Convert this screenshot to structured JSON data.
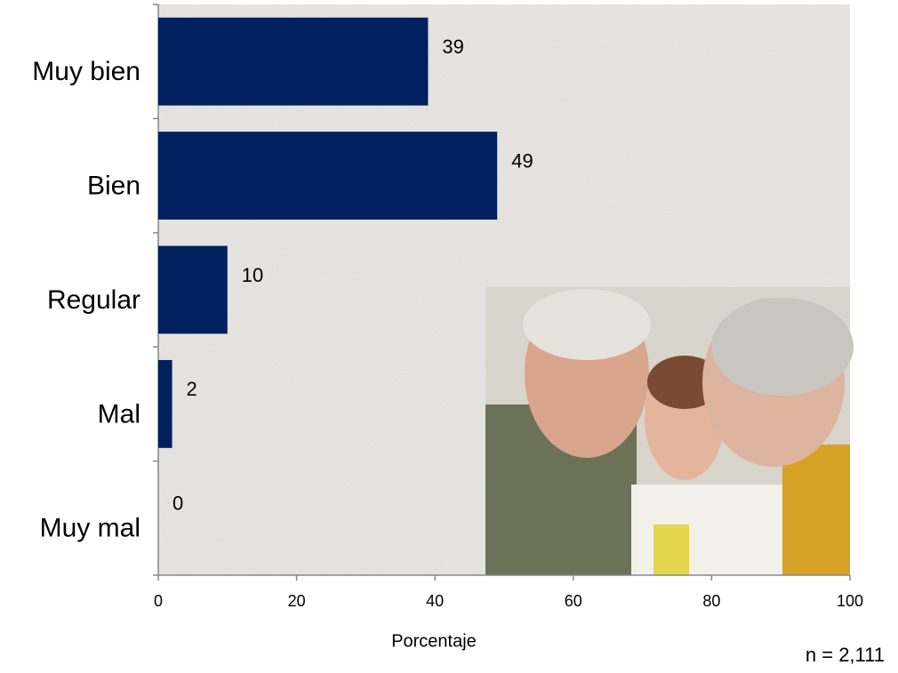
{
  "chart_data": {
    "type": "bar",
    "orientation": "horizontal",
    "categories": [
      "Muy bien",
      "Bien",
      "Regular",
      "Mal",
      "Muy mal"
    ],
    "values": [
      39,
      49,
      10,
      2,
      0
    ],
    "color": "#002060",
    "xlim": [
      0,
      100
    ],
    "xticks": [
      0,
      20,
      40,
      60,
      80,
      100
    ],
    "xlabel": "Porcentaje",
    "note": "n = 2,111"
  }
}
